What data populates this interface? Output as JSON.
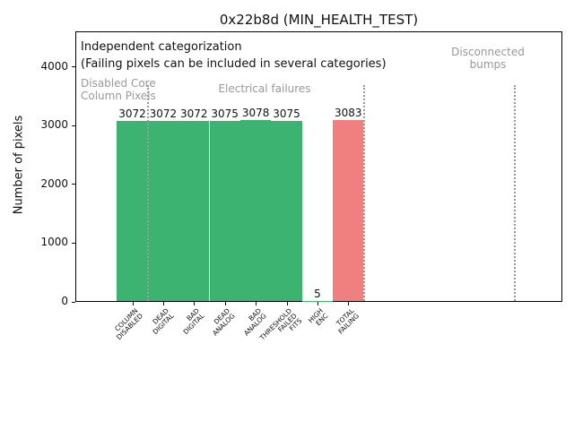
{
  "chart_data": {
    "type": "bar",
    "title": "0x22b8d (MIN_HEALTH_TEST)",
    "xlabel": "",
    "ylabel": "Number of pixels",
    "categories": [
      "COLUMN\nDISABLED",
      "DEAD\nDIGITAL",
      "BAD\nDIGITAL",
      "DEAD\nANALOG",
      "BAD\nANALOG",
      "THRESHOLD\nFAILED\nFITS",
      "HIGH\nENC",
      "TOTAL\nFAILING"
    ],
    "values": [
      3072,
      3072,
      3072,
      3075,
      3078,
      3075,
      5,
      3083
    ],
    "bar_value_labels": [
      "3072",
      "3072",
      "3072",
      "3075",
      "3078",
      "3075",
      "5",
      "3083"
    ],
    "bar_colors": [
      "#3cb371",
      "#3cb371",
      "#3cb371",
      "#3cb371",
      "#3cb371",
      "#3cb371",
      "#3cb371",
      "#f08080"
    ],
    "yticks": [
      0,
      1000,
      2000,
      3000,
      4000
    ],
    "ylim": [
      0,
      4610
    ],
    "grid": false,
    "legend_position": "none",
    "annotations": {
      "header_line1": "Independent categorization",
      "header_line2": "(Failing pixels can be included in several categories)",
      "region_labels": [
        {
          "text": "Disabled Core\nColumn Pixels"
        },
        {
          "text": "Electrical failures"
        },
        {
          "text": "Disconnected\nbumps"
        }
      ],
      "separator_positions_index": [
        0.5,
        7.5,
        12.4
      ]
    },
    "colors": {
      "bar_green": "#3cb371",
      "bar_red": "#f08080",
      "muted_gray": "#999999",
      "axis_black": "#111111"
    }
  }
}
